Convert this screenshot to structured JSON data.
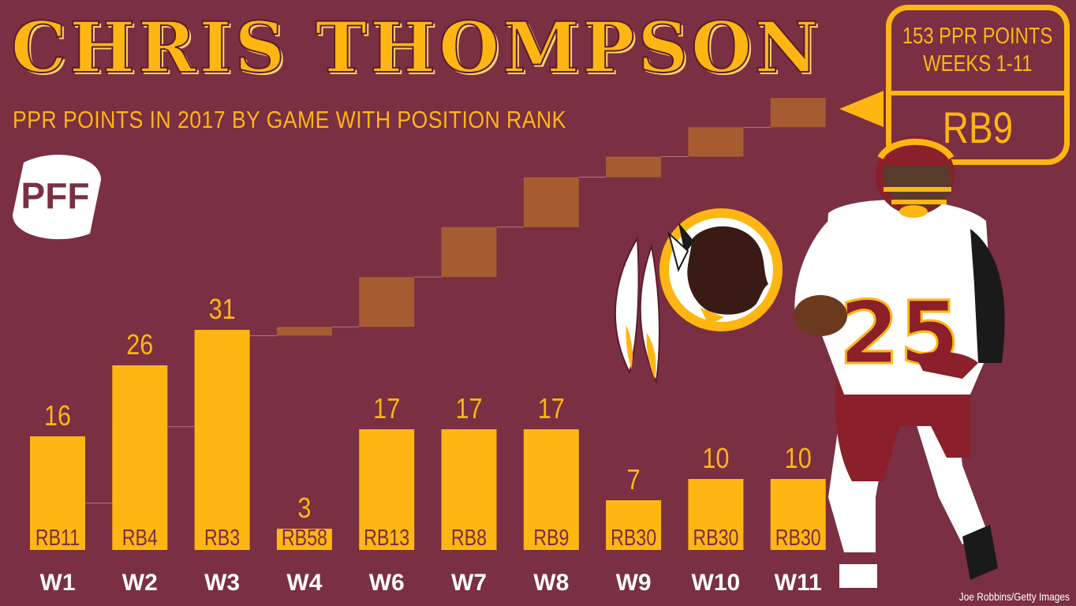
{
  "title": "CHRIS THOMPSON",
  "subtitle": "PPR POINTS IN 2017 BY GAME WITH POSITION RANK",
  "logo_text": "PFF",
  "summary": {
    "line1": "153 PPR POINTS",
    "line2": "WEEKS 1-11",
    "rank": "RB9"
  },
  "credit": "Joe Robbins/Getty Images",
  "colors": {
    "background": "#7a2f42",
    "bar": "#ffb612",
    "cumulative": "#a65c30",
    "text": "#ffb612",
    "week_label": "#ffffff"
  },
  "chart_data": {
    "type": "bar",
    "categories": [
      "W1",
      "W2",
      "W3",
      "W4",
      "W6",
      "W7",
      "W8",
      "W9",
      "W10",
      "W11"
    ],
    "values": [
      16,
      26,
      31,
      3,
      17,
      17,
      17,
      7,
      10,
      10
    ],
    "ranks": [
      "RB11",
      "RB4",
      "RB3",
      "RB58",
      "RB13",
      "RB8",
      "RB9",
      "RB30",
      "RB30",
      "RB30"
    ],
    "cumulative_total": 153,
    "title": "CHRIS THOMPSON",
    "subtitle": "PPR POINTS IN 2017 BY GAME WITH POSITION RANK",
    "xlabel": "",
    "ylabel": "",
    "grid": false,
    "legend": "none"
  }
}
